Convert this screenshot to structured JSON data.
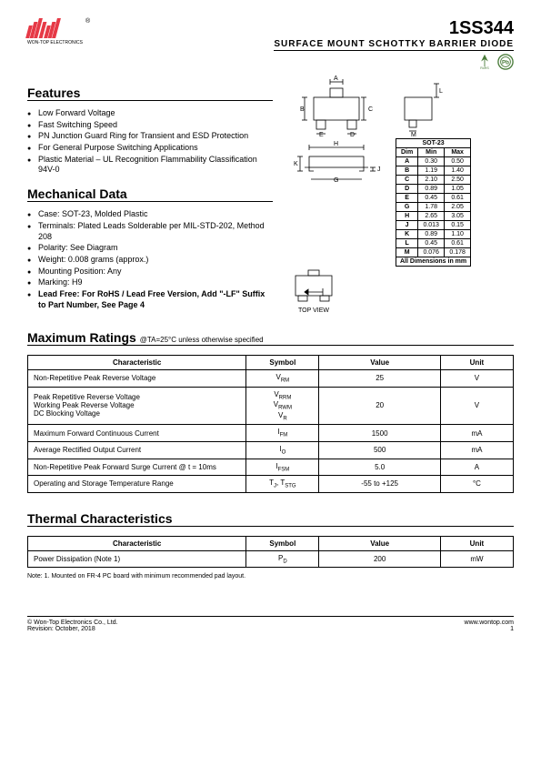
{
  "header": {
    "company": "WON-TOP ELECTRONICS",
    "part_number": "1SS344",
    "subtitle": "SURFACE MOUNT SCHOTTKY BARRIER DIODE",
    "rohs_label": "RoHS",
    "pb_label": "Pb"
  },
  "features": {
    "title": "Features",
    "items": [
      "Low Forward Voltage",
      "Fast Switching Speed",
      "PN Junction Guard Ring for Transient and ESD Protection",
      "For General Purpose Switching Applications",
      "Plastic Material – UL Recognition Flammability Classification 94V-0"
    ]
  },
  "mechanical": {
    "title": "Mechanical Data",
    "items": [
      "Case: SOT-23, Molded Plastic",
      "Terminals: Plated Leads Solderable per MIL-STD-202, Method 208",
      "Polarity: See Diagram",
      "Weight: 0.008 grams (approx.)",
      "Mounting Position: Any",
      "Marking: H9"
    ],
    "lead_free": "Lead Free: For RoHS / Lead Free Version, Add \"-LF\" Suffix to Part Number, See Page 4"
  },
  "dim_table": {
    "title": "SOT-23",
    "headers": [
      "Dim",
      "Min",
      "Max"
    ],
    "rows": [
      [
        "A",
        "0.30",
        "0.50"
      ],
      [
        "B",
        "1.19",
        "1.40"
      ],
      [
        "C",
        "2.10",
        "2.50"
      ],
      [
        "D",
        "0.89",
        "1.05"
      ],
      [
        "E",
        "0.45",
        "0.61"
      ],
      [
        "G",
        "1.78",
        "2.05"
      ],
      [
        "H",
        "2.65",
        "3.05"
      ],
      [
        "J",
        "0.013",
        "0.15"
      ],
      [
        "K",
        "0.89",
        "1.10"
      ],
      [
        "L",
        "0.45",
        "0.61"
      ],
      [
        "M",
        "0.076",
        "0.178"
      ]
    ],
    "footer": "All Dimensions in mm"
  },
  "top_view_label": "TOP VIEW",
  "ratings": {
    "title": "Maximum Ratings",
    "conditions": "@TA=25°C unless otherwise specified",
    "headers": [
      "Characteristic",
      "Symbol",
      "Value",
      "Unit"
    ],
    "rows": [
      {
        "char": "Non-Repetitive Peak Reverse Voltage",
        "symbol": "VRM",
        "value": "25",
        "unit": "V"
      },
      {
        "char": "Peak Repetitive Reverse Voltage\nWorking Peak Reverse Voltage\nDC Blocking Voltage",
        "symbol": "VRRM\nVRWM\nVR",
        "value": "20",
        "unit": "V"
      },
      {
        "char": "Maximum Forward Continuous Current",
        "symbol": "IFM",
        "value": "1500",
        "unit": "mA"
      },
      {
        "char": "Average Rectified Output Current",
        "symbol": "IO",
        "value": "500",
        "unit": "mA"
      },
      {
        "char": "Non-Repetitive Peak Forward Surge Current     @ t = 10ms",
        "symbol": "IFSM",
        "value": "5.0",
        "unit": "A"
      },
      {
        "char": "Operating and Storage Temperature Range",
        "symbol": "TJ, TSTG",
        "value": "-55 to +125",
        "unit": "°C"
      }
    ]
  },
  "thermal": {
    "title": "Thermal Characteristics",
    "headers": [
      "Characteristic",
      "Symbol",
      "Value",
      "Unit"
    ],
    "rows": [
      {
        "char": "Power Dissipation (Note 1)",
        "symbol": "PD",
        "value": "200",
        "unit": "mW"
      }
    ]
  },
  "note": "Note:  1. Mounted on FR-4 PC board with minimum recommended pad layout.",
  "footer": {
    "copyright": "© Won-Top Electronics Co., Ltd.",
    "revision": "Revision: October, 2018",
    "url": "www.wontop.com",
    "page": "1"
  },
  "colors": {
    "accent": "#e63946",
    "green": "#4a7c3a",
    "text": "#000000"
  }
}
